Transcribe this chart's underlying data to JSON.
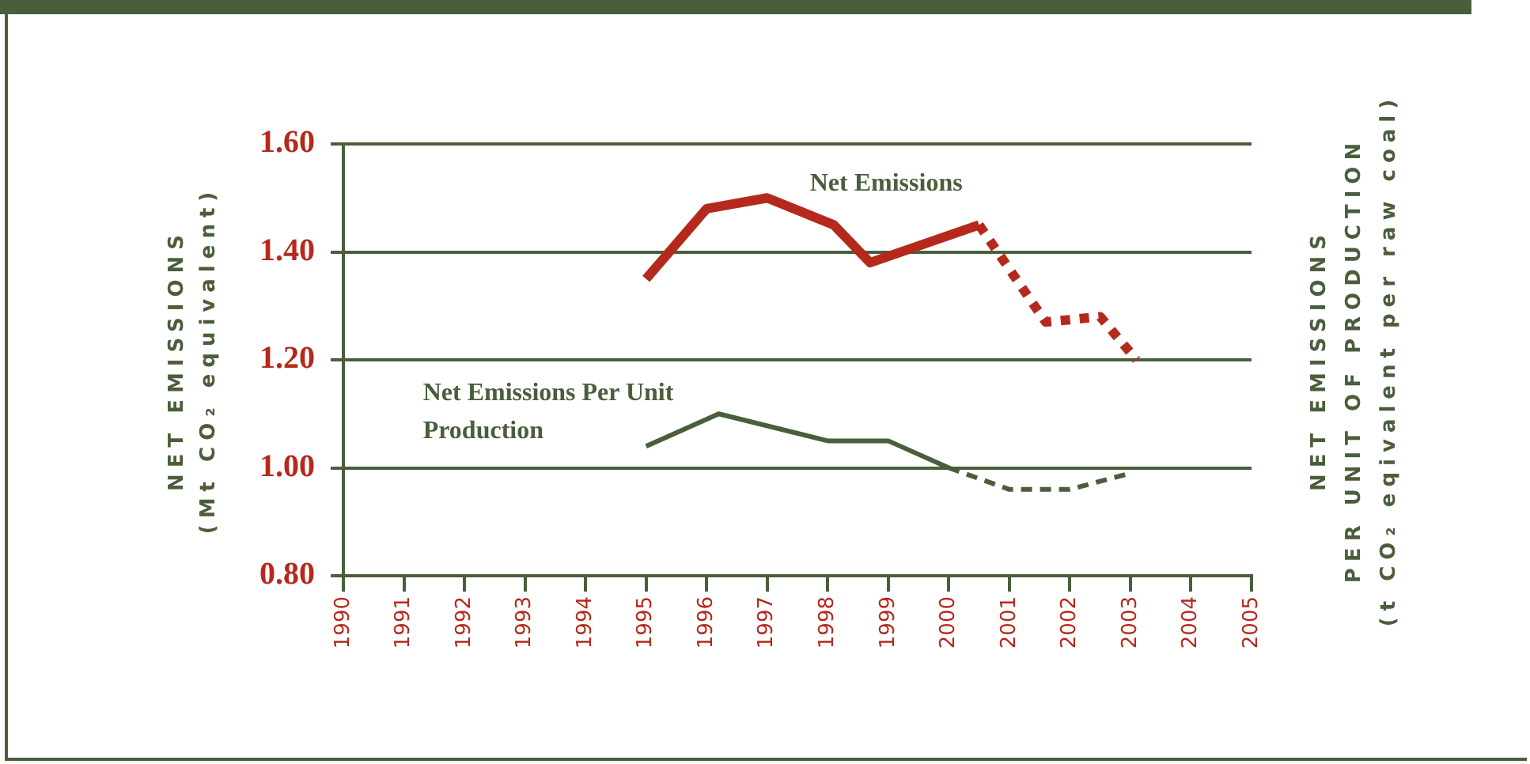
{
  "chart_data": {
    "type": "line",
    "ylabel": "NET EMISSIONS\n(Mt CO₂ equivalent)",
    "y2label": "NET EMISSIONS\nPER UNIT OF PRODUCTION\n(t CO₂ eqivalent per raw coal)",
    "xlim": [
      1990,
      2005
    ],
    "xticks": [
      1990,
      1991,
      1992,
      1993,
      1994,
      1995,
      1996,
      1997,
      1998,
      1999,
      2000,
      2001,
      2002,
      2003,
      2004,
      2005
    ],
    "ylim": [
      0.8,
      1.6
    ],
    "yticks": [
      {
        "value": 0.8,
        "label": "0.80"
      },
      {
        "value": 1.0,
        "label": "1.00"
      },
      {
        "value": 1.2,
        "label": "1.20"
      },
      {
        "value": 1.4,
        "label": "1.40"
      },
      {
        "value": 1.6,
        "label": "1.60"
      }
    ],
    "grid": "y",
    "marker": "none",
    "series": [
      {
        "name": "Net Emissions",
        "color": "#b5291c",
        "line_style": "solid",
        "x": [
          1995,
          1996,
          1997,
          1998.1,
          1998.7,
          2000.5
        ],
        "values": [
          1.35,
          1.48,
          1.5,
          1.45,
          1.38,
          1.45
        ]
      },
      {
        "color": "#b5291c",
        "line_style": "dotted",
        "x": [
          2000.5,
          2001.6,
          2002.5,
          2003.1
        ],
        "values": [
          1.45,
          1.27,
          1.28,
          1.2
        ]
      },
      {
        "name": "Net Emissions Per Unit\nProduction",
        "color": "#4a5e3c",
        "line_style": "solid",
        "x": [
          1995,
          1996.2,
          1998,
          1999,
          2000
        ],
        "values": [
          1.04,
          1.1,
          1.05,
          1.05,
          1.0
        ]
      },
      {
        "color": "#4a5e3c",
        "line_style": "dashed",
        "x": [
          2000,
          2001,
          2002,
          2003
        ],
        "values": [
          1.0,
          0.96,
          0.96,
          0.99
        ]
      }
    ]
  }
}
